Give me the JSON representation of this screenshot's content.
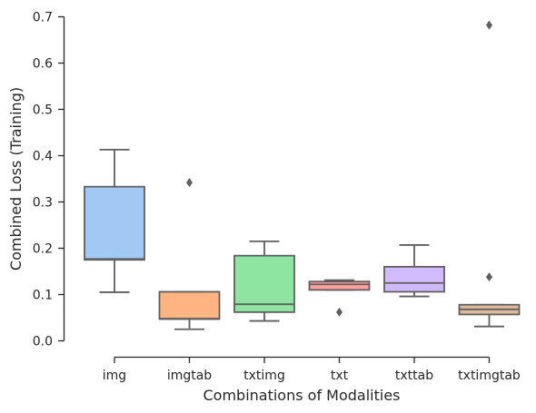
{
  "chart_data": {
    "type": "box",
    "title": "",
    "xlabel": "Combinations of Modalities",
    "ylabel": "Combined Loss (Training)",
    "ylim": [
      0,
      0.7
    ],
    "yticks": [
      "0.0",
      "0.1",
      "0.2",
      "0.3",
      "0.4",
      "0.5",
      "0.6",
      "0.7"
    ],
    "legend": "none",
    "grid": false,
    "categories": [
      "img",
      "imgtab",
      "txtimg",
      "txt",
      "txttab",
      "txtimgtab"
    ],
    "boxes": [
      {
        "category": "img",
        "color": "#a1c9f4",
        "whisker_low": 0.105,
        "q1": 0.175,
        "median": 0.177,
        "q3": 0.333,
        "whisker_high": 0.413,
        "outliers": []
      },
      {
        "category": "imgtab",
        "color": "#ffb482",
        "whisker_low": 0.025,
        "q1": 0.047,
        "median": 0.048,
        "q3": 0.106,
        "whisker_high": 0.106,
        "outliers": [
          0.342
        ]
      },
      {
        "category": "txtimg",
        "color": "#8de5a1",
        "whisker_low": 0.043,
        "q1": 0.062,
        "median": 0.079,
        "q3": 0.184,
        "whisker_high": 0.215,
        "outliers": []
      },
      {
        "category": "txt",
        "color": "#ff9f9b",
        "whisker_low": 0.11,
        "q1": 0.11,
        "median": 0.122,
        "q3": 0.128,
        "whisker_high": 0.131,
        "outliers": [
          0.062
        ]
      },
      {
        "category": "txttab",
        "color": "#d0bbff",
        "whisker_low": 0.096,
        "q1": 0.106,
        "median": 0.125,
        "q3": 0.16,
        "whisker_high": 0.207,
        "outliers": []
      },
      {
        "category": "txtimgtab",
        "color": "#debb9b",
        "whisker_low": 0.031,
        "q1": 0.057,
        "median": 0.068,
        "q3": 0.078,
        "whisker_high": 0.078,
        "outliers": [
          0.138,
          0.682
        ]
      }
    ]
  }
}
